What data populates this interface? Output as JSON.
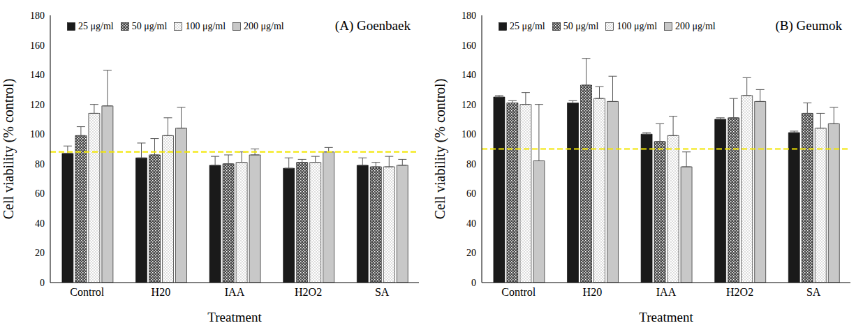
{
  "chart_data": [
    {
      "type": "bar",
      "title": "(A) Goenbaek",
      "x_label": "Treatment",
      "y_label": "Cell viability (% control)",
      "categories": [
        "Control",
        "H20",
        "IAA",
        "H2O2",
        "SA"
      ],
      "series": [
        {
          "name": "25 μg/ml",
          "color": "#1a1a1a",
          "values": [
            87,
            84,
            79,
            77,
            79
          ],
          "errors": [
            5,
            10,
            6,
            7,
            5
          ]
        },
        {
          "name": "50 μg/ml",
          "color": "#444444",
          "values": [
            99,
            86,
            80,
            81,
            78
          ],
          "errors": [
            6,
            11,
            6,
            2,
            3
          ]
        },
        {
          "name": "100 μg/ml",
          "color": "#dddddd",
          "values": [
            114,
            99,
            81,
            81,
            78
          ],
          "errors": [
            6,
            12,
            7,
            4,
            7
          ]
        },
        {
          "name": "200 μg/ml",
          "color": "#c8c8c8",
          "values": [
            119,
            104,
            86,
            88,
            79
          ],
          "errors": [
            24,
            14,
            4,
            3,
            4
          ]
        }
      ],
      "ylim": [
        0,
        180
      ],
      "yticks": [
        0,
        20,
        40,
        60,
        80,
        100,
        120,
        140,
        160,
        180
      ],
      "legend": "upper left",
      "reference_line": {
        "value": 88,
        "color": "#f2e600",
        "line_style": "dashed"
      }
    },
    {
      "type": "bar",
      "title": "(B) Geumok",
      "x_label": "Treatment",
      "y_label": "Cell viability (% control)",
      "categories": [
        "Control",
        "H20",
        "IAA",
        "H2O2",
        "SA"
      ],
      "series": [
        {
          "name": "25 μg/ml",
          "color": "#1a1a1a",
          "values": [
            125,
            121,
            100,
            110,
            101
          ],
          "errors": [
            1,
            1.5,
            1,
            1,
            1
          ]
        },
        {
          "name": "50 μg/ml",
          "color": "#444444",
          "values": [
            121,
            133,
            95,
            111,
            114
          ],
          "errors": [
            1.5,
            18,
            12,
            13,
            7
          ]
        },
        {
          "name": "100 μg/ml",
          "color": "#dddddd",
          "values": [
            120,
            124,
            99,
            126,
            104
          ],
          "errors": [
            8,
            8,
            13,
            12,
            10
          ]
        },
        {
          "name": "200 μg/ml",
          "color": "#c8c8c8",
          "values": [
            82,
            122,
            78,
            122,
            107
          ],
          "errors": [
            38,
            17,
            10,
            8,
            11
          ]
        }
      ],
      "ylim": [
        0,
        180
      ],
      "yticks": [
        0,
        20,
        40,
        60,
        80,
        100,
        120,
        140,
        160,
        180
      ],
      "legend": "upper left",
      "reference_line": {
        "value": 90,
        "color": "#f2e600",
        "line_style": "dashed"
      }
    }
  ]
}
